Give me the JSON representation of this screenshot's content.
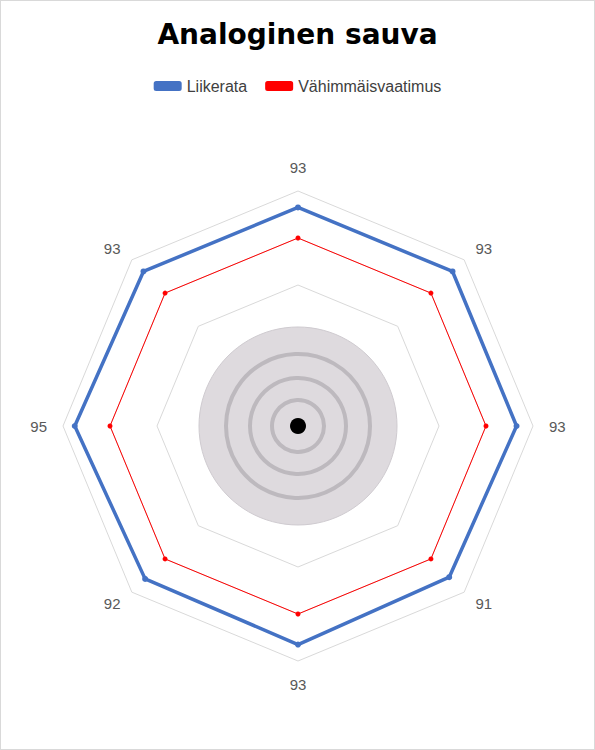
{
  "chart_data": {
    "type": "radar",
    "title": "Analoginen sauva",
    "categories": [
      "93",
      "93",
      "93",
      "91",
      "93",
      "92",
      "95",
      "93"
    ],
    "series": [
      {
        "name": "Liikerata",
        "color": "#4472c4",
        "marker": "circle",
        "values": [
          93,
          93,
          93,
          91,
          93,
          92,
          95,
          93
        ]
      },
      {
        "name": "Vähimmäisvaatimus",
        "color": "#ff0000",
        "marker": "circle",
        "values": [
          80,
          80,
          80,
          80,
          80,
          80,
          80,
          80
        ]
      }
    ],
    "ylim": [
      0,
      100
    ],
    "yticks": [
      0,
      20,
      40,
      60,
      80,
      100
    ],
    "grid": true,
    "tick_labels": "x",
    "legend": "top"
  }
}
